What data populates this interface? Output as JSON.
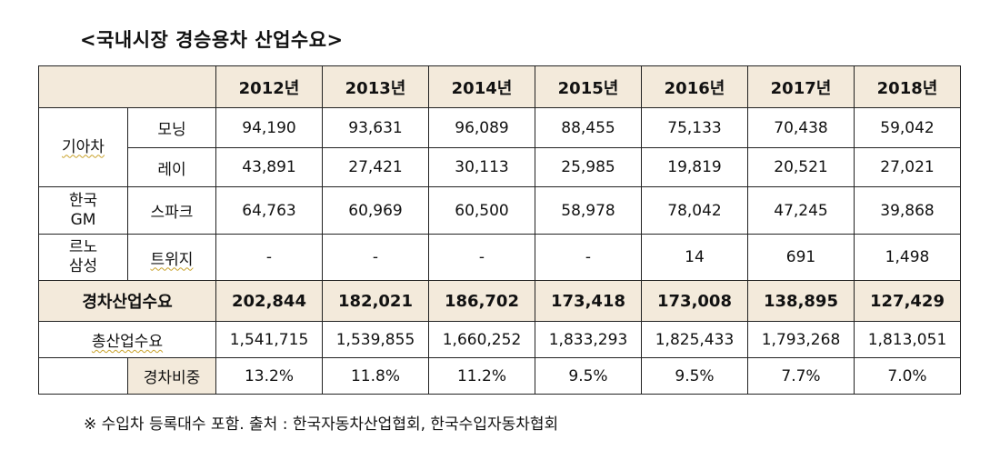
{
  "title": "<국내시장 경승용차 산업수요>",
  "years": [
    "2012년",
    "2013년",
    "2014년",
    "2015년",
    "2016년",
    "2017년",
    "2018년"
  ],
  "groups": [
    {
      "maker_line1": "기아차",
      "maker_line2": "",
      "models": [
        {
          "name": "모닝",
          "values": [
            "94,190",
            "93,631",
            "96,089",
            "88,455",
            "75,133",
            "70,438",
            "59,042"
          ]
        },
        {
          "name": "레이",
          "values": [
            "43,891",
            "27,421",
            "30,113",
            "25,985",
            "19,819",
            "20,521",
            "27,021"
          ]
        }
      ]
    },
    {
      "maker_line1": "한국",
      "maker_line2": "GM",
      "models": [
        {
          "name": "스파크",
          "values": [
            "64,763",
            "60,969",
            "60,500",
            "58,978",
            "78,042",
            "47,245",
            "39,868"
          ]
        }
      ]
    },
    {
      "maker_line1": "르노",
      "maker_line2": "삼성",
      "models": [
        {
          "name": "트위지",
          "values": [
            "-",
            "-",
            "-",
            "-",
            "14",
            "691",
            "1,498"
          ]
        }
      ]
    }
  ],
  "light_total": {
    "label": "경차산업수요",
    "values": [
      "202,844",
      "182,021",
      "186,702",
      "173,418",
      "173,008",
      "138,895",
      "127,429"
    ]
  },
  "overall_total": {
    "label": "총산업수요",
    "values": [
      "1,541,715",
      "1,539,855",
      "1,660,252",
      "1,833,293",
      "1,825,433",
      "1,793,268",
      "1,813,051"
    ]
  },
  "share": {
    "label": "경차비중",
    "values": [
      "13.2%",
      "11.8%",
      "11.2%",
      "9.5%",
      "9.5%",
      "7.7%",
      "7.0%"
    ]
  },
  "note": "※ 수입차 등록대수 포함. 출처 : 한국자동차산업협회, 한국수입자동차협회",
  "colors": {
    "header_fill": "#f3eadb",
    "border": "#222222"
  }
}
